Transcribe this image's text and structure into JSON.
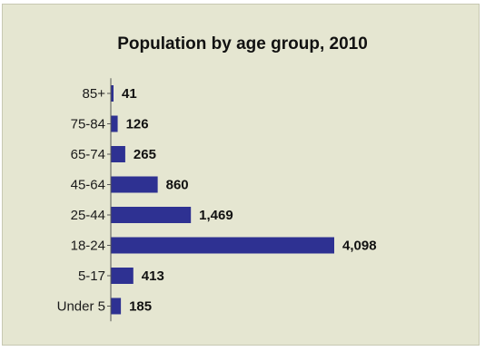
{
  "chart_data": {
    "type": "bar",
    "orientation": "horizontal",
    "title": "Population by age group, 2010",
    "xlabel": "",
    "ylabel": "",
    "categories": [
      "85+",
      "75-84",
      "65-74",
      "45-64",
      "25-44",
      "18-24",
      "5-17",
      "Under 5"
    ],
    "values": [
      41,
      126,
      265,
      860,
      1469,
      4098,
      413,
      185
    ],
    "value_labels": [
      "41",
      "126",
      "265",
      "860",
      "1,469",
      "4,098",
      "413",
      "185"
    ],
    "xlim": [
      0,
      4098
    ],
    "grid": false,
    "legend": "none",
    "colors": {
      "bar": "#2e3192",
      "background": "#e5e6d1",
      "border": "#c7c8b2"
    }
  }
}
